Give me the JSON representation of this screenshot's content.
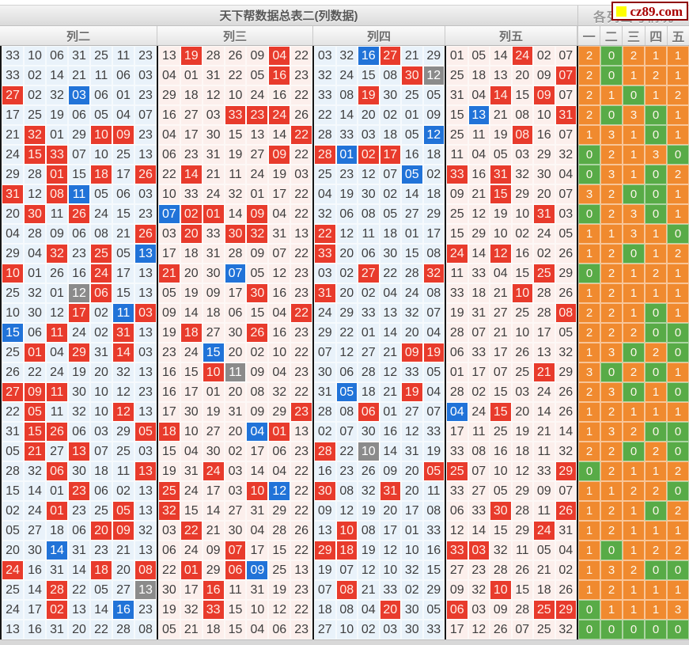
{
  "title": "天下帮数据总表二(列数据)",
  "right_title": "各列出号情况",
  "logo": {
    "text": "cz89.com",
    "square_color": "#ffff00"
  },
  "columns": [
    "列二",
    "列三",
    "列四",
    "列五"
  ],
  "stat_headers": [
    "一",
    "二",
    "三",
    "四",
    "五"
  ],
  "colors": {
    "highlight_red": "#e83b2c",
    "highlight_blue": "#2173d8",
    "highlight_gray": "#8b8b8b",
    "stat_orange": "#f08a2f",
    "stat_green": "#58ab47",
    "col_blue_bg": "#e9f2fa",
    "col_pink_bg": "#fcefec",
    "group_divider": "#161616"
  },
  "legend": {
    "r": "red-highlight",
    "b": "blue-highlight",
    "g": "gray-highlight",
    "stat_zero": "green"
  },
  "rows": [
    {
      "c2": [
        "33",
        "10",
        "06",
        "31",
        "25",
        "11",
        "23"
      ],
      "c3": [
        "13",
        "19r",
        "28",
        "26",
        "09",
        "04r",
        "22"
      ],
      "c4": [
        "03",
        "32",
        "16b",
        "27r",
        "21",
        "29"
      ],
      "c5": [
        "01",
        "05",
        "14",
        "24r",
        "02",
        "07"
      ],
      "st": [
        2,
        0,
        2,
        1,
        1
      ]
    },
    {
      "c2": [
        "33",
        "02",
        "14",
        "21",
        "11",
        "06",
        "03"
      ],
      "c3": [
        "04",
        "01",
        "31",
        "22",
        "05",
        "16r",
        "23"
      ],
      "c4": [
        "32",
        "24",
        "15",
        "08",
        "30r",
        "12g"
      ],
      "c5": [
        "25",
        "18",
        "13",
        "20",
        "09",
        "07r"
      ],
      "st": [
        2,
        0,
        1,
        2,
        1
      ]
    },
    {
      "c2": [
        "27r",
        "02",
        "32",
        "03b",
        "06",
        "01",
        "23"
      ],
      "c3": [
        "29",
        "18",
        "12",
        "10",
        "24",
        "16",
        "22"
      ],
      "c4": [
        "33",
        "08",
        "19r",
        "30",
        "25",
        "05"
      ],
      "c5": [
        "31",
        "04",
        "14r",
        "15",
        "09r",
        "07"
      ],
      "st": [
        2,
        1,
        0,
        1,
        2
      ]
    },
    {
      "c2": [
        "17",
        "25",
        "19",
        "06",
        "05",
        "04",
        "07"
      ],
      "c3": [
        "16",
        "27",
        "03",
        "33r",
        "23r",
        "24r",
        "26"
      ],
      "c4": [
        "22",
        "14",
        "20",
        "02",
        "01",
        "09"
      ],
      "c5": [
        "15",
        "13b",
        "21",
        "08",
        "10",
        "31r"
      ],
      "st": [
        2,
        0,
        3,
        0,
        1
      ]
    },
    {
      "c2": [
        "21",
        "32r",
        "01",
        "29",
        "10r",
        "09r",
        "23"
      ],
      "c3": [
        "04",
        "17",
        "30",
        "15",
        "13",
        "14",
        "22r"
      ],
      "c4": [
        "28",
        "33",
        "03",
        "18",
        "05",
        "12b"
      ],
      "c5": [
        "25",
        "11",
        "19",
        "08r",
        "16",
        "07"
      ],
      "st": [
        1,
        3,
        1,
        0,
        1
      ]
    },
    {
      "c2": [
        "24",
        "15r",
        "33r",
        "07",
        "10",
        "25",
        "13"
      ],
      "c3": [
        "06",
        "23",
        "31",
        "19",
        "27",
        "09r",
        "22"
      ],
      "c4": [
        "28r",
        "01b",
        "02r",
        "17r",
        "16",
        "18"
      ],
      "c5": [
        "11",
        "04",
        "05",
        "03",
        "29",
        "32"
      ],
      "st": [
        0,
        2,
        1,
        3,
        0
      ]
    },
    {
      "c2": [
        "29",
        "28",
        "01r",
        "15",
        "18r",
        "17",
        "26r"
      ],
      "c3": [
        "22",
        "14r",
        "21",
        "11",
        "24",
        "19",
        "03"
      ],
      "c4": [
        "25",
        "23",
        "12",
        "07",
        "05b",
        "02"
      ],
      "c5": [
        "33r",
        "16",
        "31r",
        "32",
        "30",
        "04"
      ],
      "st": [
        0,
        3,
        1,
        0,
        2
      ]
    },
    {
      "c2": [
        "31r",
        "12",
        "08r",
        "11b",
        "05",
        "06",
        "03"
      ],
      "c3": [
        "10",
        "33",
        "24",
        "32",
        "01",
        "17",
        "22"
      ],
      "c4": [
        "04",
        "19",
        "30",
        "02",
        "14",
        "18"
      ],
      "c5": [
        "09",
        "21",
        "15r",
        "29",
        "20",
        "07"
      ],
      "st": [
        3,
        2,
        0,
        0,
        1
      ]
    },
    {
      "c2": [
        "20",
        "30r",
        "11",
        "26r",
        "24",
        "15",
        "23"
      ],
      "c3": [
        "07b",
        "02r",
        "01r",
        "14",
        "09r",
        "04",
        "22"
      ],
      "c4": [
        "32",
        "06",
        "08",
        "05",
        "27",
        "29"
      ],
      "c5": [
        "25",
        "12",
        "19",
        "10",
        "31r",
        "03"
      ],
      "st": [
        0,
        2,
        3,
        0,
        1
      ]
    },
    {
      "c2": [
        "04",
        "28",
        "09",
        "06",
        "08",
        "21",
        "26r"
      ],
      "c3": [
        "03",
        "20r",
        "33",
        "30r",
        "32r",
        "31",
        "13"
      ],
      "c4": [
        "22r",
        "12",
        "11",
        "18",
        "01",
        "17"
      ],
      "c5": [
        "15",
        "29",
        "10",
        "02",
        "24",
        "05"
      ],
      "st": [
        1,
        1,
        3,
        1,
        0
      ]
    },
    {
      "c2": [
        "29",
        "04",
        "32r",
        "23",
        "25r",
        "05",
        "13b"
      ],
      "c3": [
        "17",
        "18",
        "31",
        "28",
        "09",
        "07",
        "22"
      ],
      "c4": [
        "33r",
        "20",
        "06",
        "30",
        "15",
        "08"
      ],
      "c5": [
        "24r",
        "14",
        "12r",
        "16",
        "02",
        "26"
      ],
      "st": [
        1,
        2,
        0,
        1,
        2
      ]
    },
    {
      "c2": [
        "10r",
        "01",
        "26",
        "16",
        "24r",
        "17",
        "13"
      ],
      "c3": [
        "21r",
        "20",
        "30",
        "07b",
        "05",
        "12",
        "23"
      ],
      "c4": [
        "03",
        "02",
        "27r",
        "22",
        "28",
        "32r"
      ],
      "c5": [
        "11",
        "33",
        "04",
        "15",
        "25r",
        "29"
      ],
      "st": [
        0,
        2,
        1,
        2,
        1
      ]
    },
    {
      "c2": [
        "25",
        "32",
        "01",
        "12g",
        "06r",
        "15",
        "13"
      ],
      "c3": [
        "05",
        "19",
        "09",
        "17",
        "30r",
        "16",
        "23"
      ],
      "c4": [
        "31r",
        "20",
        "02",
        "04",
        "24",
        "08"
      ],
      "c5": [
        "33",
        "18",
        "21",
        "10r",
        "28",
        "26"
      ],
      "st": [
        1,
        2,
        1,
        1,
        1
      ]
    },
    {
      "c2": [
        "10",
        "30",
        "12",
        "17r",
        "02",
        "11b",
        "03r"
      ],
      "c3": [
        "09",
        "14",
        "18",
        "06",
        "15",
        "04",
        "22r"
      ],
      "c4": [
        "24",
        "29",
        "33",
        "13",
        "32",
        "07"
      ],
      "c5": [
        "19",
        "31",
        "27",
        "25",
        "28",
        "08r"
      ],
      "st": [
        2,
        2,
        1,
        0,
        1
      ]
    },
    {
      "c2": [
        "15b",
        "06",
        "11r",
        "24",
        "02",
        "31r",
        "13"
      ],
      "c3": [
        "19",
        "18r",
        "27",
        "30",
        "26r",
        "16",
        "23"
      ],
      "c4": [
        "29",
        "22",
        "01",
        "14",
        "20",
        "04"
      ],
      "c5": [
        "28",
        "07",
        "21",
        "10",
        "17",
        "05"
      ],
      "st": [
        2,
        2,
        2,
        0,
        0
      ]
    },
    {
      "c2": [
        "25",
        "01r",
        "04",
        "29r",
        "31",
        "14r",
        "03"
      ],
      "c3": [
        "23",
        "24",
        "15b",
        "20",
        "02",
        "10",
        "22"
      ],
      "c4": [
        "07",
        "12",
        "27",
        "21",
        "09r",
        "19r"
      ],
      "c5": [
        "06",
        "33",
        "17",
        "26",
        "13",
        "32"
      ],
      "st": [
        1,
        3,
        0,
        2,
        0
      ]
    },
    {
      "c2": [
        "26",
        "22",
        "24",
        "19",
        "20",
        "32",
        "13"
      ],
      "c3": [
        "16",
        "15",
        "10r",
        "11g",
        "09",
        "04",
        "23"
      ],
      "c4": [
        "30",
        "06",
        "28",
        "12",
        "33",
        "05"
      ],
      "c5": [
        "01",
        "17",
        "07",
        "25",
        "21r",
        "29"
      ],
      "st": [
        3,
        0,
        2,
        0,
        1
      ]
    },
    {
      "c2": [
        "27r",
        "09r",
        "11r",
        "30",
        "10",
        "12",
        "23"
      ],
      "c3": [
        "16",
        "17",
        "01",
        "20",
        "08",
        "32",
        "22"
      ],
      "c4": [
        "31",
        "05b",
        "18",
        "21",
        "19r",
        "04"
      ],
      "c5": [
        "28",
        "02",
        "15",
        "03",
        "24",
        "26"
      ],
      "st": [
        2,
        3,
        0,
        1,
        0
      ]
    },
    {
      "c2": [
        "22",
        "05r",
        "11",
        "32",
        "10",
        "12r",
        "13"
      ],
      "c3": [
        "17",
        "30",
        "19",
        "31",
        "09",
        "29",
        "23r"
      ],
      "c4": [
        "28",
        "08",
        "06r",
        "01",
        "27",
        "07"
      ],
      "c5": [
        "04b",
        "24",
        "15r",
        "20",
        "14",
        "26"
      ],
      "st": [
        1,
        2,
        1,
        1,
        1
      ]
    },
    {
      "c2": [
        "31",
        "15r",
        "26r",
        "06",
        "03",
        "29",
        "05r"
      ],
      "c3": [
        "18r",
        "10",
        "27",
        "20",
        "04b",
        "01r",
        "13"
      ],
      "c4": [
        "02",
        "07",
        "30",
        "16",
        "12",
        "33"
      ],
      "c5": [
        "17",
        "11",
        "25",
        "19",
        "21",
        "14"
      ],
      "st": [
        1,
        3,
        2,
        0,
        0
      ]
    },
    {
      "c2": [
        "05",
        "21r",
        "27",
        "13r",
        "07",
        "25",
        "03"
      ],
      "c3": [
        "15",
        "04",
        "30",
        "02",
        "17",
        "06",
        "23"
      ],
      "c4": [
        "28r",
        "22",
        "10g",
        "14",
        "31",
        "19"
      ],
      "c5": [
        "33",
        "08",
        "16",
        "18",
        "11",
        "32"
      ],
      "st": [
        2,
        2,
        0,
        2,
        0
      ]
    },
    {
      "c2": [
        "28",
        "32",
        "06r",
        "30",
        "18",
        "11",
        "13r"
      ],
      "c3": [
        "19",
        "31",
        "24r",
        "03",
        "14",
        "04",
        "22"
      ],
      "c4": [
        "16",
        "23",
        "26",
        "09",
        "20",
        "05r"
      ],
      "c5": [
        "25r",
        "07",
        "10",
        "12",
        "33",
        "29r"
      ],
      "st": [
        0,
        2,
        1,
        1,
        2
      ]
    },
    {
      "c2": [
        "15",
        "14",
        "01",
        "23r",
        "06",
        "02",
        "13"
      ],
      "c3": [
        "25r",
        "24",
        "17",
        "03",
        "10r",
        "12b",
        "22"
      ],
      "c4": [
        "30r",
        "08",
        "32",
        "31r",
        "20",
        "11"
      ],
      "c5": [
        "33",
        "27",
        "05",
        "29",
        "09",
        "07"
      ],
      "st": [
        1,
        1,
        2,
        2,
        0
      ]
    },
    {
      "c2": [
        "02",
        "24",
        "01r",
        "23",
        "25",
        "05r",
        "13"
      ],
      "c3": [
        "32r",
        "15",
        "14",
        "27",
        "31",
        "29",
        "22"
      ],
      "c4": [
        "09",
        "12",
        "19",
        "20",
        "17",
        "08"
      ],
      "c5": [
        "06",
        "33",
        "30r",
        "28",
        "11",
        "26r"
      ],
      "st": [
        1,
        2,
        1,
        0,
        2
      ]
    },
    {
      "c2": [
        "05",
        "27",
        "18",
        "06",
        "20r",
        "09r",
        "32"
      ],
      "c3": [
        "03",
        "22r",
        "21",
        "30",
        "04",
        "28",
        "26"
      ],
      "c4": [
        "13",
        "10r",
        "08",
        "17",
        "01",
        "33"
      ],
      "c5": [
        "12",
        "14",
        "15",
        "29",
        "24r",
        "31"
      ],
      "st": [
        1,
        2,
        1,
        1,
        1
      ]
    },
    {
      "c2": [
        "20",
        "30",
        "14b",
        "31",
        "23",
        "21",
        "13"
      ],
      "c3": [
        "06",
        "24",
        "09",
        "07r",
        "17",
        "15",
        "22"
      ],
      "c4": [
        "29r",
        "18r",
        "19",
        "12",
        "10",
        "16"
      ],
      "c5": [
        "33r",
        "03r",
        "32",
        "11",
        "05",
        "04"
      ],
      "st": [
        1,
        0,
        1,
        2,
        2
      ]
    },
    {
      "c2": [
        "24r",
        "16",
        "31",
        "14",
        "18r",
        "20",
        "08r"
      ],
      "c3": [
        "22",
        "01r",
        "29",
        "06r",
        "09b",
        "25",
        "13"
      ],
      "c4": [
        "19",
        "07",
        "12",
        "10",
        "32",
        "15"
      ],
      "c5": [
        "27",
        "23",
        "28",
        "26",
        "21",
        "02"
      ],
      "st": [
        1,
        3,
        2,
        0,
        0
      ]
    },
    {
      "c2": [
        "25",
        "14",
        "28r",
        "22",
        "05",
        "27",
        "13g"
      ],
      "c3": [
        "30",
        "17",
        "16r",
        "11",
        "31",
        "19",
        "23"
      ],
      "c4": [
        "07",
        "08r",
        "21",
        "33",
        "02",
        "29"
      ],
      "c5": [
        "09",
        "32",
        "10r",
        "15",
        "18",
        "26"
      ],
      "st": [
        1,
        2,
        1,
        1,
        1
      ]
    },
    {
      "c2": [
        "24",
        "17",
        "02r",
        "13",
        "14",
        "16b",
        "23"
      ],
      "c3": [
        "19",
        "32",
        "33r",
        "15",
        "10",
        "12",
        "22"
      ],
      "c4": [
        "18",
        "08",
        "04",
        "20r",
        "30",
        "05"
      ],
      "c5": [
        "06r",
        "03",
        "09",
        "28",
        "25r",
        "29r"
      ],
      "st": [
        0,
        1,
        1,
        1,
        3
      ]
    },
    {
      "c2": [
        "13",
        "16",
        "31",
        "20",
        "22",
        "28",
        "08"
      ],
      "c3": [
        "05",
        "21",
        "18",
        "15",
        "04",
        "06",
        "23"
      ],
      "c4": [
        "27",
        "10",
        "02",
        "03",
        "30",
        "33"
      ],
      "c5": [
        "17",
        "12",
        "26",
        "07",
        "25",
        "32"
      ],
      "st": [
        0,
        0,
        0,
        0,
        0
      ]
    }
  ]
}
